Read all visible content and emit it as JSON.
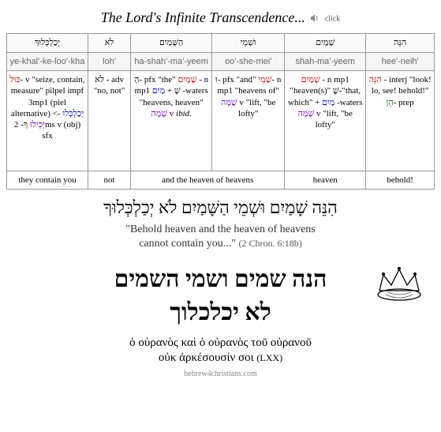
{
  "title": "The Lord's Infinite Transcendence...",
  "audio_label": "click",
  "columns": [
    {
      "hebrew": "יְכַלְכְּלוּךָ",
      "translit": "ye-khal'-ke-loo'-kha",
      "parsing": "<span class='red heb-word'>כּוּל</span>- v \"seize, contain, measure\" pilpel impf 3mp1 (piel alternative) <span class='blue heb-word'>יְכַלְכְּלוּ</span> -&gt; <span class='purple heb-word'>יְכִילוּ</span> <span class='heb-word'>ךָ</span>- 2ms v (obj) sfx",
      "gloss": "they contain you"
    },
    {
      "hebrew": "לֹא",
      "translit": "loh'",
      "parsing": "<span class='heb-word'>לֹא</span> - adv \"no, not\"",
      "gloss": "not"
    },
    {
      "hebrew": "הַשָּׁמַיִם",
      "translit": "ha-shah'-ma'-yeem",
      "parsing": "<span class='heb-word'>הַ</span>- pfx \"the\" <span class='red heb-word'>שָׁמַיִם</span> - n mp1 <span class='heb-word'>שָׁ</span> + <span class='blue heb-word'>מַיִם</span> -waters \"heavens, heaven\" <span class='purple heb-word'>שָׁמָה</span> v <i>ibid.</i>",
      "gloss_span": 2,
      "gloss": "and the heaven of heavens"
    },
    {
      "hebrew": "וּשְׁמֵי",
      "translit": "oo'-she-mei'",
      "parsing": "<span class='heb-word'>וּ</span>- pfx \"and\" <span class='red heb-word'>שְׁמֵי</span>- n mp1 \"heavens of\" <span class='purple heb-word'>שָׁמָה</span> v \"lift, \"be lofty\""
    },
    {
      "hebrew": "שָׁמַיִם",
      "translit": "shah-ma'-yeem",
      "parsing": "<span class='red heb-word'>שָׁמַיִם</span> - n mp1 \"heaven(s)\" <span class='heb-word'>שֶׁ</span>-\"that, which\" + <span class='blue heb-word'>מַיִם</span> -waters <span class='purple heb-word'>שָׁמָה</span> v \"lift, \"be lofty\"",
      "gloss": "heaven"
    },
    {
      "hebrew": "הִנֵּה",
      "translit": "hee'-neih'",
      "parsing": "<span class='red heb-word'>הִנֵּה</span> - interj \"look! lo, see! behold!\" <span class='green heb-word'>הֵן</span>- prep",
      "gloss": "behold!"
    }
  ],
  "phrase_hebrew": "הִנֵּה שָׁמַיִם וּשְׁמֵי הַשָּׁמַיִם לֹא יְכַלְכְּלוּךָ",
  "translation_line1": "\"Behold heaven and the heaven of heavens",
  "translation_line2": "cannot contain you...\"",
  "citation": "(2 Chron. 6:18b)",
  "big_hebrew_line1": "הנה שמים ושמי השמים",
  "big_hebrew_line2": "לא יכלכלוך",
  "greek_line1": "ὁ οὐρανὸς καὶ ὁ οὐρανὸς τοῦ οὐρανοῦ",
  "greek_line2": "οὐκ ἀρκέσουσίν σοι",
  "lxx_label": "(LXX)",
  "footer": "hebrew4christians.com"
}
